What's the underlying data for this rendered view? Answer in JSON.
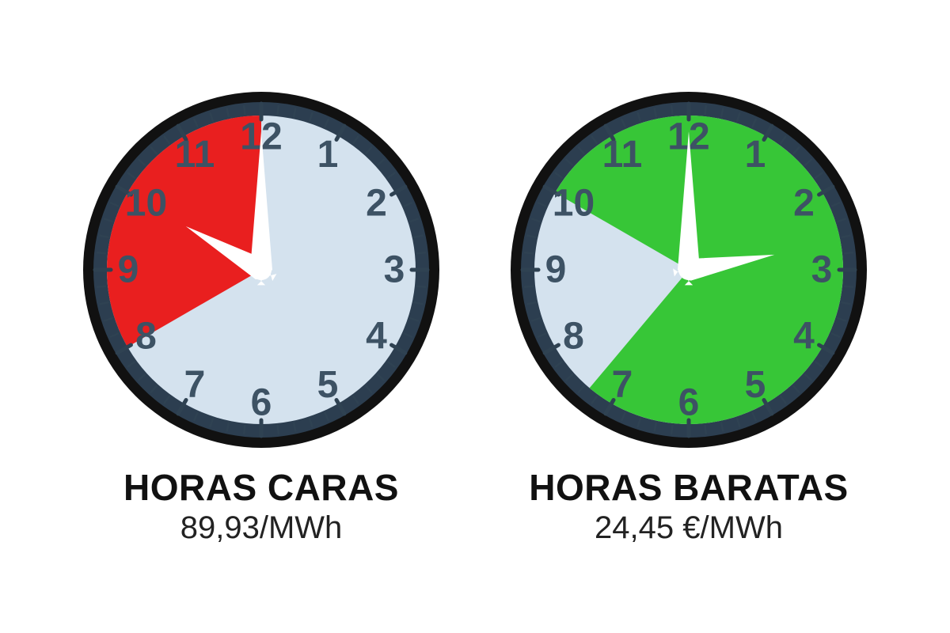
{
  "clocks": [
    {
      "title": "HORAS CARAS",
      "price": "89,93/MWh",
      "sector_color": "#e91f1f",
      "sector_start_deg": 240,
      "sector_end_deg": 360,
      "hour_hand_deg": 300,
      "minute_hand_deg": 0
    },
    {
      "title": "HORAS BARATAS",
      "price": "24,45 €/MWh",
      "sector_color": "#37c637",
      "sector_start_deg": 300,
      "sector_end_deg": 580,
      "hour_hand_deg": 80,
      "minute_hand_deg": 0
    }
  ],
  "style": {
    "face_color": "#d4e2ee",
    "rim_outer": "#111111",
    "rim_inner": "#2c3e50",
    "numeral_color": "#3d5264",
    "tick_color": "#2f4252",
    "hand_color": "#ffffff",
    "numeral_fontsize": 48,
    "title_fontsize": 46,
    "price_fontsize": 40
  }
}
